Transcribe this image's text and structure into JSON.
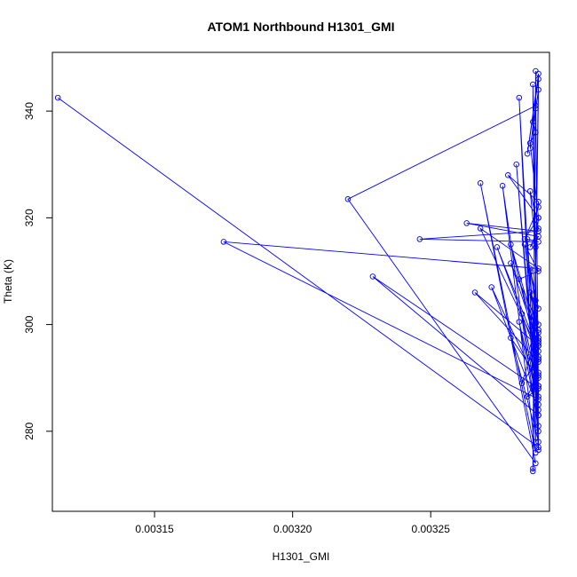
{
  "chart_data": {
    "type": "scatter",
    "title": "ATOM1 Northbound H1301_GMI",
    "xlabel": "H1301_GMI",
    "ylabel": "Theta (K)",
    "xlim": [
      0.003113,
      0.003293
    ],
    "ylim": [
      265,
      351
    ],
    "x_ticks": [
      0.00315,
      0.0032,
      0.00325
    ],
    "x_tick_labels": [
      "0.00315",
      "0.00320",
      "0.00325"
    ],
    "y_ticks": [
      280,
      300,
      320,
      340
    ],
    "y_tick_labels": [
      "280",
      "300",
      "320",
      "340"
    ],
    "grid": false,
    "legend": "none",
    "series_color": "#0000ff",
    "series": [
      {
        "mode": "lines+markers",
        "x": [
          0.003115,
          0.003289,
          0.003287,
          0.003288,
          0.003282,
          0.003289,
          0.003288,
          0.003287,
          0.003289,
          0.003285,
          0.003289,
          0.003287,
          0.003289,
          0.003286,
          0.003288,
          0.00322,
          0.003288,
          0.003268,
          0.003288,
          0.003276,
          0.003289,
          0.003281,
          0.003289,
          0.003287,
          0.003288,
          0.003286,
          0.003289,
          0.003278,
          0.003289,
          0.003289,
          0.003284,
          0.003289,
          0.003288,
          0.003286,
          0.003289,
          0.003286,
          0.003289,
          0.003263,
          0.003289,
          0.003246,
          0.003289,
          0.003285,
          0.003289,
          0.003175,
          0.003289,
          0.003268,
          0.003289,
          0.003274,
          0.003289,
          0.003279,
          0.003289,
          0.003284,
          0.003289,
          0.003282,
          0.003289,
          0.003286,
          0.003289,
          0.003286,
          0.003289,
          0.003279,
          0.003289,
          0.003266,
          0.003289,
          0.003288,
          0.003289,
          0.003272,
          0.003289,
          0.003283,
          0.003289,
          0.003229,
          0.003289,
          0.003286,
          0.003289,
          0.003282,
          0.003289,
          0.003287,
          0.003289,
          0.003279,
          0.003289,
          0.003287,
          0.003289,
          0.003287,
          0.003289,
          0.003286,
          0.003289,
          0.003285,
          0.003289,
          0.003288,
          0.003289,
          0.003287,
          0.003289,
          0.003283,
          0.003289,
          0.003288,
          0.003289,
          0.003289,
          0.003288,
          0.003289,
          0.003289,
          0.003287,
          0.003289,
          0.003288
        ],
        "y": [
          342.5,
          277,
          345,
          278,
          342.5,
          276.5,
          347.5,
          273,
          346,
          332,
          347,
          272.5,
          344,
          333,
          341,
          323.5,
          274,
          326.5,
          276,
          326,
          280,
          330,
          283,
          338,
          336,
          334,
          320,
          328,
          323,
          322,
          316,
          320,
          314.5,
          325,
          318,
          314.5,
          316.5,
          319,
          317.5,
          316,
          315.5,
          316,
          286,
          315.5,
          310.5,
          318,
          295,
          314.5,
          293.5,
          315,
          297,
          315,
          310,
          308.5,
          296,
          306,
          303,
          310.5,
          300,
          311.5,
          296,
          306,
          293,
          304.5,
          288.5,
          307,
          284,
          302,
          288,
          309,
          283,
          310,
          281,
          300.5,
          285,
          299,
          278,
          297.5,
          290,
          301.5,
          290.5,
          300,
          288.5,
          294,
          288,
          286.5,
          291,
          292,
          297.5,
          296,
          299,
          289,
          293.5,
          290.5,
          298.5,
          297,
          292,
          296.5,
          294,
          288.5,
          286.5,
          340.5
        ]
      }
    ]
  }
}
